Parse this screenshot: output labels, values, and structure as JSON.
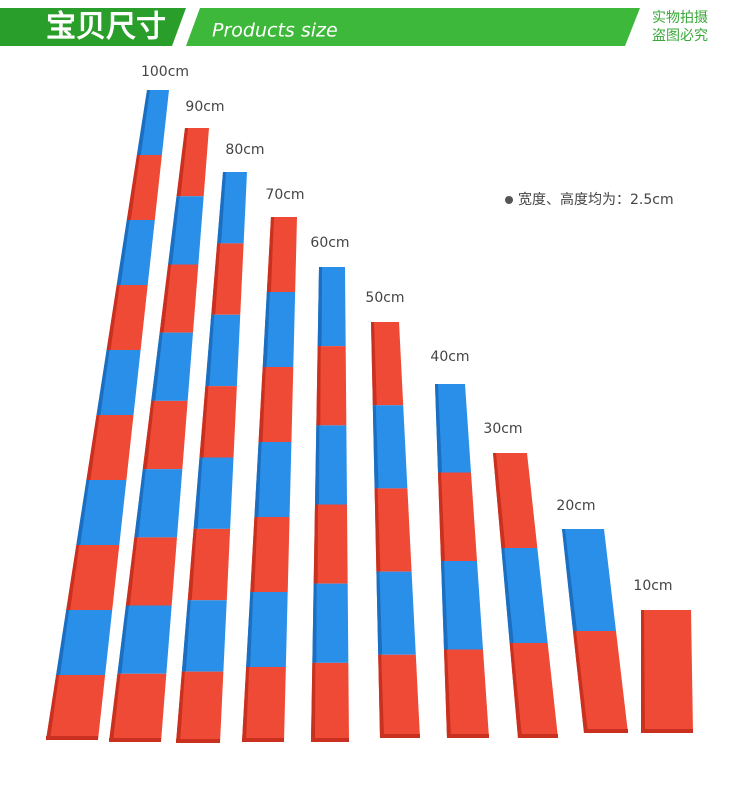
{
  "header": {
    "title": "宝贝尺寸",
    "subtitle": "Products size",
    "watermark": [
      "实物拍摄",
      "盗图必究"
    ]
  },
  "note": "宽度、高度均为：2.5cm",
  "rods": [
    "100cm",
    "90cm",
    "80cm",
    "70cm",
    "60cm",
    "50cm",
    "40cm",
    "30cm",
    "20cm",
    "10cm"
  ]
}
